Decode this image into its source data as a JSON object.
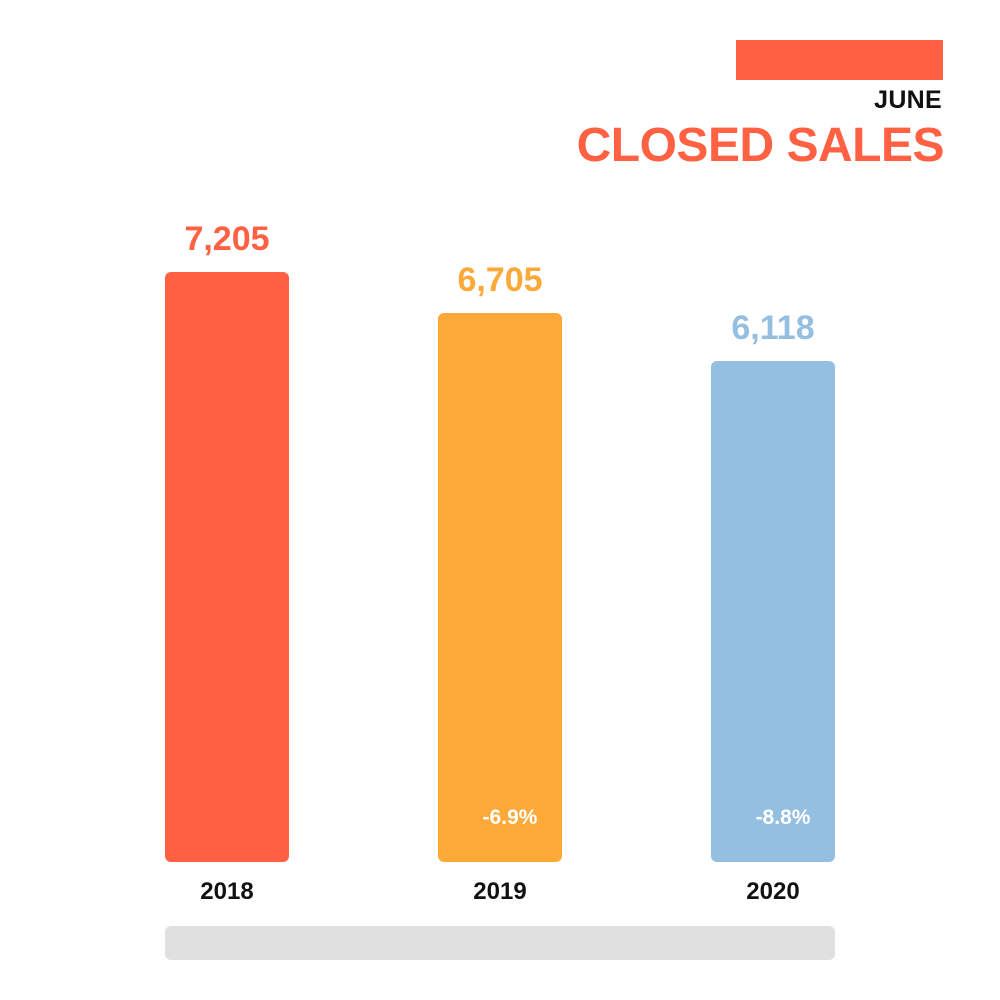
{
  "header": {
    "subtitle": "JUNE",
    "title": "CLOSED SALES"
  },
  "colors": {
    "accent": "#ff6142",
    "text": "#111111",
    "track": "#e0e0e0",
    "change_label": "#ffffff"
  },
  "chart_data": {
    "type": "bar",
    "title": "CLOSED SALES",
    "subtitle": "JUNE",
    "categories": [
      "2018",
      "2019",
      "2020"
    ],
    "values": [
      7205,
      6705,
      6118
    ],
    "value_labels": [
      "7,205",
      "6,705",
      "6,118"
    ],
    "change_labels": [
      "",
      "-6.9%",
      "-8.8%"
    ],
    "bar_colors": [
      "#ff6142",
      "#fda93a",
      "#95bfe0"
    ],
    "ylim": [
      0,
      7205
    ],
    "xlabel": "",
    "ylabel": "",
    "grid": false,
    "legend": "none"
  }
}
